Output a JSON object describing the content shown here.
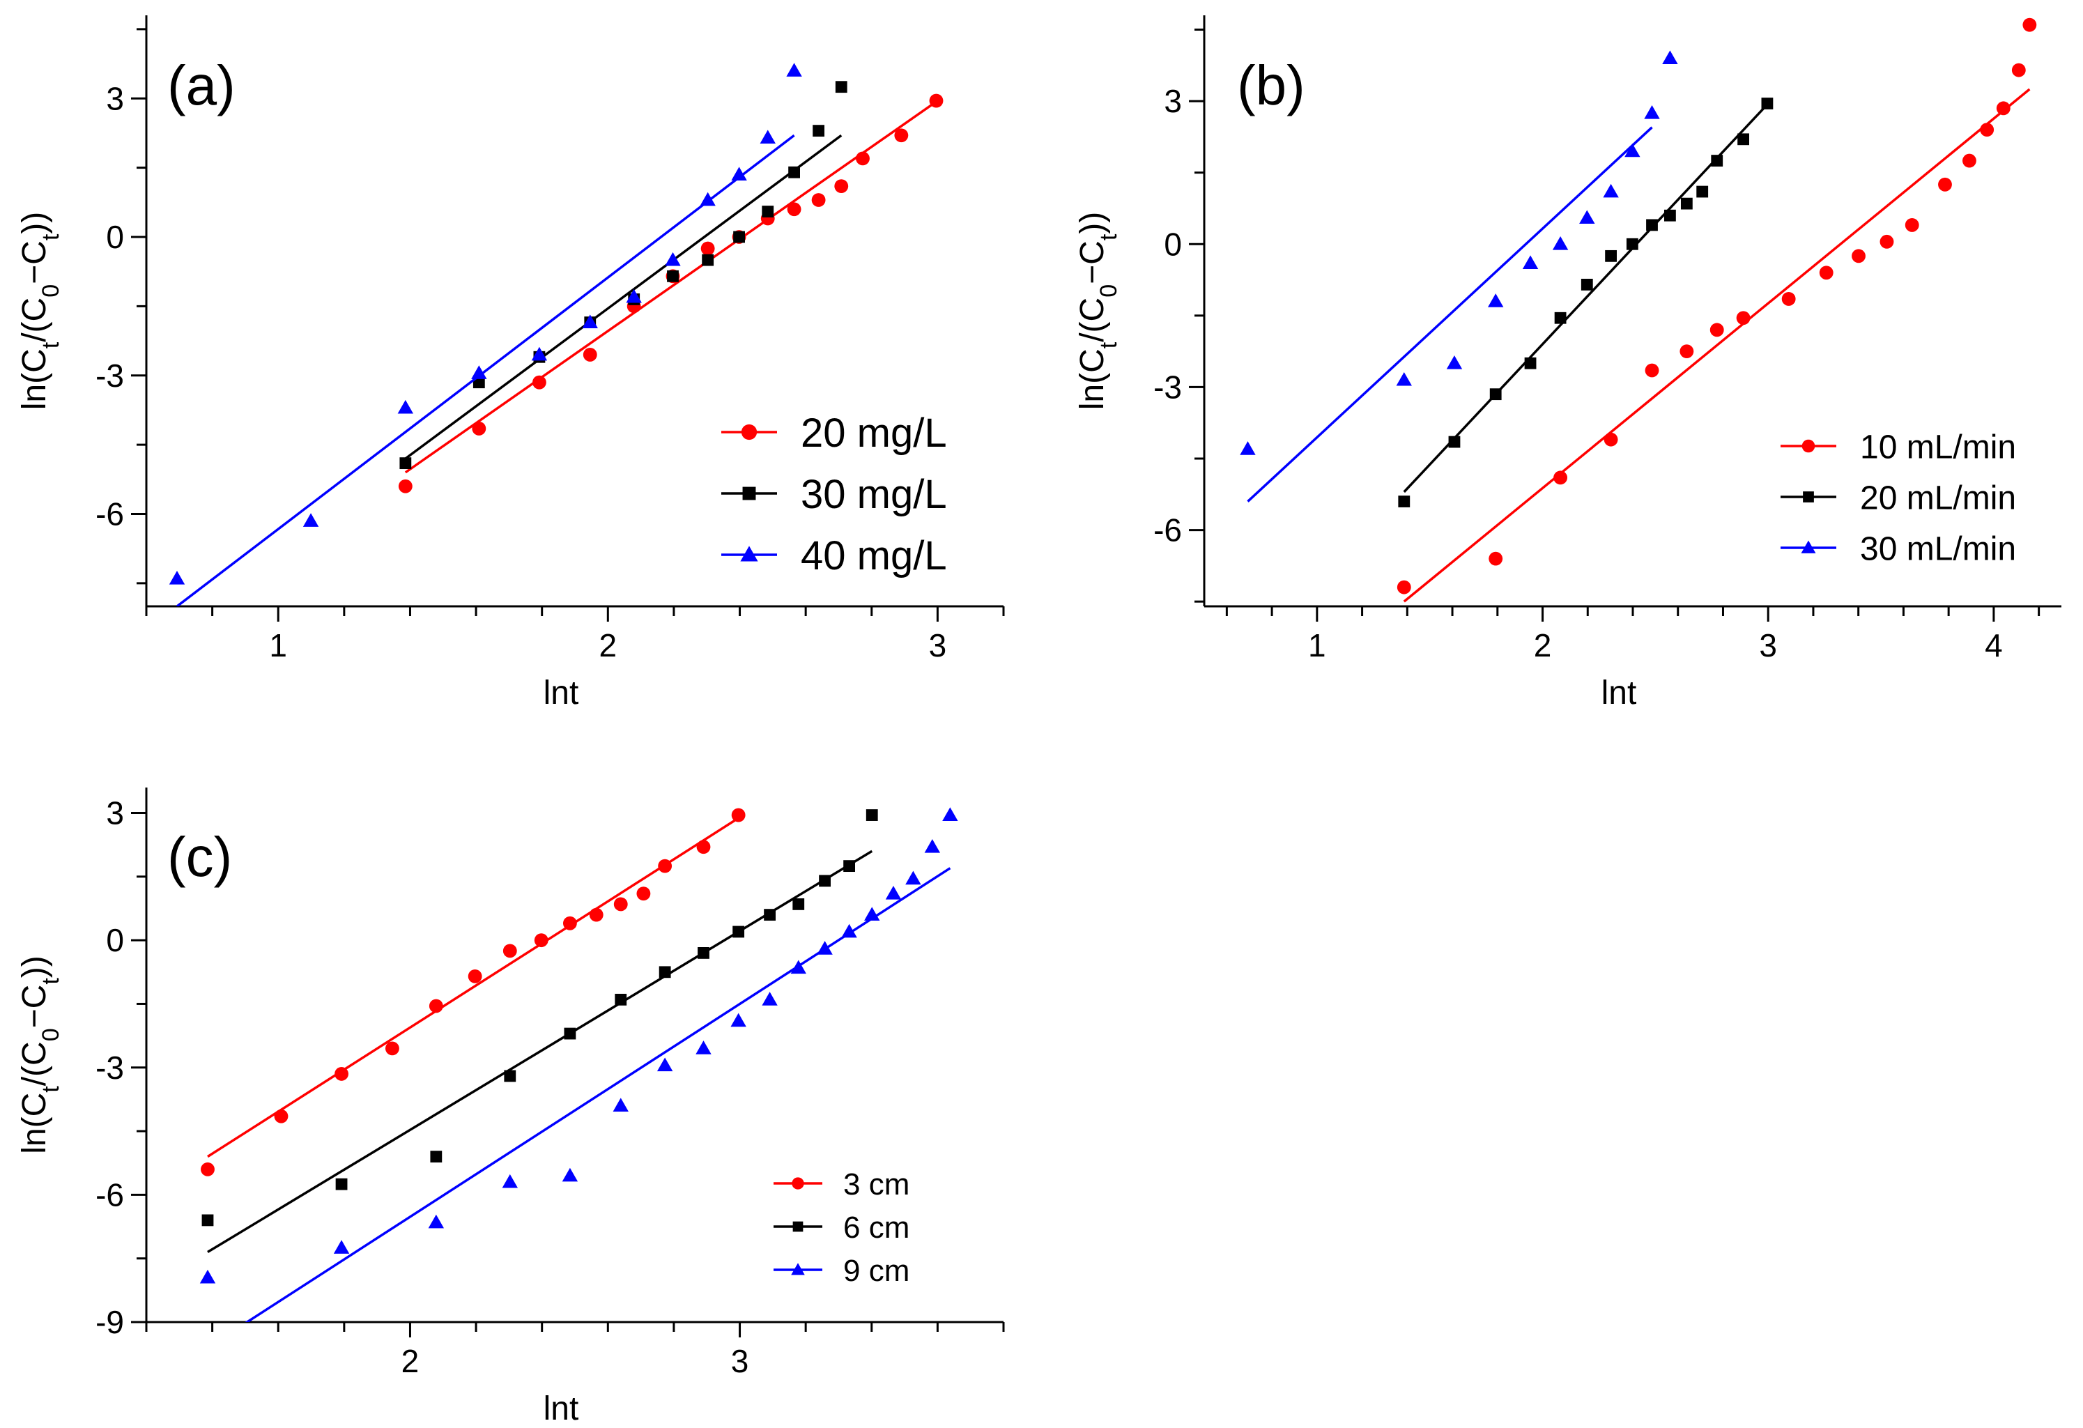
{
  "chart_data": [
    {
      "type": "scatter",
      "panel_label": "(a)",
      "xlabel": "lnt",
      "ylabel": "ln(Ct/(C0−Ct))",
      "ylabel_parts": {
        "pre": "ln(C",
        "sub1": "t",
        "mid": "/(C",
        "sub2": "0",
        "mid2": "−C",
        "sub3": "t",
        "post": "))"
      },
      "xlim": [
        0.6,
        3.2
      ],
      "ylim": [
        -8.0,
        4.8
      ],
      "xticks": [
        1,
        2,
        3
      ],
      "xtick_labels": [
        "1",
        "2",
        "3"
      ],
      "yticks": [
        -6,
        -3,
        0,
        3
      ],
      "ytick_labels": [
        "-6",
        "-3",
        "0",
        "3"
      ],
      "legend_position": "bottom-right",
      "series": [
        {
          "name": "20 mg/L",
          "color": "#ff0000",
          "marker": "circle",
          "x": [
            1.386,
            1.609,
            1.792,
            1.946,
            2.079,
            2.197,
            2.303,
            2.398,
            2.485,
            2.565,
            2.639,
            2.708,
            2.773,
            2.89,
            2.996
          ],
          "y": [
            -5.4,
            -4.15,
            -3.15,
            -2.55,
            -1.5,
            -0.85,
            -0.25,
            0.0,
            0.4,
            0.6,
            0.8,
            1.1,
            1.7,
            2.2,
            2.95
          ],
          "fit": [
            [
              1.386,
              -5.1
            ],
            [
              3.0,
              2.95
            ]
          ]
        },
        {
          "name": "30 mg/L",
          "color": "#000000",
          "marker": "square",
          "x": [
            1.386,
            1.609,
            1.792,
            1.946,
            2.079,
            2.197,
            2.303,
            2.398,
            2.485,
            2.565,
            2.639,
            2.708
          ],
          "y": [
            -4.9,
            -3.15,
            -2.6,
            -1.85,
            -1.35,
            -0.85,
            -0.5,
            0.0,
            0.55,
            1.4,
            2.3,
            3.25
          ],
          "fit": [
            [
              1.386,
              -4.8
            ],
            [
              2.708,
              2.2
            ]
          ]
        },
        {
          "name": "40 mg/L",
          "color": "#0000ff",
          "marker": "triangle",
          "x": [
            0.693,
            1.099,
            1.386,
            1.609,
            1.792,
            1.946,
            2.079,
            2.197,
            2.303,
            2.398,
            2.485,
            2.565
          ],
          "y": [
            -7.4,
            -6.15,
            -3.7,
            -2.95,
            -2.55,
            -1.85,
            -1.3,
            -0.5,
            0.8,
            1.35,
            2.15,
            3.6
          ],
          "fit": [
            [
              0.693,
              -8.0
            ],
            [
              2.565,
              2.2
            ]
          ]
        }
      ]
    },
    {
      "type": "scatter",
      "panel_label": "(b)",
      "xlabel": "lnt",
      "ylabel": "ln(Ct/(C0−Ct))",
      "ylabel_parts": {
        "pre": "ln(C",
        "sub1": "t",
        "mid": "/(C",
        "sub2": "0",
        "mid2": "−C",
        "sub3": "t",
        "post": "))"
      },
      "xlim": [
        0.5,
        4.3
      ],
      "ylim": [
        -7.6,
        4.8
      ],
      "xticks": [
        1,
        2,
        3,
        4
      ],
      "xtick_labels": [
        "1",
        "2",
        "3",
        "4"
      ],
      "yticks": [
        -6,
        -3,
        0,
        3
      ],
      "ytick_labels": [
        "-6",
        "-3",
        "0",
        "3"
      ],
      "legend_position": "bottom-right",
      "series": [
        {
          "name": "10 mL/min",
          "color": "#ff0000",
          "marker": "circle",
          "x": [
            1.386,
            1.792,
            2.079,
            2.303,
            2.485,
            2.639,
            2.773,
            2.89,
            3.091,
            3.258,
            3.401,
            3.526,
            3.638,
            3.784,
            3.892,
            3.97,
            4.043,
            4.111,
            4.159
          ],
          "y": [
            -7.2,
            -6.6,
            -4.9,
            -4.1,
            -2.65,
            -2.25,
            -1.8,
            -1.55,
            -1.15,
            -0.6,
            -0.25,
            0.05,
            0.4,
            1.25,
            1.75,
            2.4,
            2.85,
            3.65,
            4.6
          ],
          "fit": [
            [
              1.386,
              -7.5
            ],
            [
              4.159,
              3.25
            ]
          ]
        },
        {
          "name": "20 mL/min",
          "color": "#000000",
          "marker": "square",
          "x": [
            1.386,
            1.609,
            1.792,
            1.946,
            2.079,
            2.197,
            2.303,
            2.398,
            2.485,
            2.565,
            2.639,
            2.708,
            2.773,
            2.89,
            2.996
          ],
          "y": [
            -5.4,
            -4.15,
            -3.15,
            -2.5,
            -1.55,
            -0.85,
            -0.25,
            0.0,
            0.4,
            0.6,
            0.85,
            1.1,
            1.75,
            2.2,
            2.95
          ],
          "fit": [
            [
              1.386,
              -5.2
            ],
            [
              3.0,
              2.95
            ]
          ]
        },
        {
          "name": "30 mL/min",
          "color": "#0000ff",
          "marker": "triangle",
          "x": [
            0.693,
            1.386,
            1.609,
            1.792,
            1.946,
            2.079,
            2.197,
            2.303,
            2.398,
            2.485,
            2.565
          ],
          "y": [
            -4.3,
            -2.85,
            -2.5,
            -1.2,
            -0.4,
            0.0,
            0.55,
            1.1,
            1.95,
            2.75,
            3.9
          ],
          "fit": [
            [
              0.693,
              -5.4
            ],
            [
              2.485,
              2.45
            ]
          ]
        }
      ]
    },
    {
      "type": "scatter",
      "panel_label": "(c)",
      "xlabel": "lnt",
      "ylabel": "ln(Ct/(C0−Ct))",
      "ylabel_parts": {
        "pre": "ln(C",
        "sub1": "t",
        "mid": "/(C",
        "sub2": "0",
        "mid2": "−C",
        "sub3": "t",
        "post": "))"
      },
      "xlim": [
        1.2,
        3.8
      ],
      "ylim": [
        -9.0,
        3.6
      ],
      "xticks": [
        2,
        3
      ],
      "xtick_labels": [
        "2",
        "3"
      ],
      "yticks": [
        -9,
        -6,
        -3,
        0,
        3
      ],
      "ytick_labels": [
        "-9",
        "-6",
        "-3",
        "0",
        "3"
      ],
      "legend_position": "bottom-right",
      "series": [
        {
          "name": "3 cm",
          "color": "#ff0000",
          "marker": "circle",
          "x": [
            1.386,
            1.609,
            1.792,
            1.946,
            2.079,
            2.197,
            2.303,
            2.398,
            2.485,
            2.565,
            2.639,
            2.708,
            2.773,
            2.89,
            2.996
          ],
          "y": [
            -5.4,
            -4.15,
            -3.15,
            -2.55,
            -1.55,
            -0.85,
            -0.25,
            0.0,
            0.4,
            0.6,
            0.85,
            1.1,
            1.75,
            2.2,
            2.95
          ],
          "fit": [
            [
              1.386,
              -5.1
            ],
            [
              3.0,
              2.9
            ]
          ]
        },
        {
          "name": "6 cm",
          "color": "#000000",
          "marker": "square",
          "x": [
            1.386,
            1.792,
            2.079,
            2.303,
            2.485,
            2.639,
            2.773,
            2.89,
            2.996,
            3.091,
            3.178,
            3.258,
            3.332,
            3.401
          ],
          "y": [
            -6.6,
            -5.75,
            -5.1,
            -3.2,
            -2.2,
            -1.4,
            -0.75,
            -0.3,
            0.2,
            0.6,
            0.85,
            1.4,
            1.75,
            2.95
          ],
          "fit": [
            [
              1.386,
              -7.35
            ],
            [
              3.401,
              2.1
            ]
          ]
        },
        {
          "name": "9 cm",
          "color": "#0000ff",
          "marker": "triangle",
          "x": [
            1.386,
            1.792,
            2.079,
            2.303,
            2.485,
            2.639,
            2.773,
            2.89,
            2.996,
            3.091,
            3.178,
            3.258,
            3.332,
            3.401,
            3.466,
            3.526,
            3.584,
            3.638
          ],
          "y": [
            -7.95,
            -7.25,
            -6.65,
            -5.7,
            -5.55,
            -3.9,
            -2.95,
            -2.55,
            -1.9,
            -1.4,
            -0.65,
            -0.2,
            0.2,
            0.6,
            1.1,
            1.45,
            2.2,
            2.95
          ],
          "fit": [
            [
              1.386,
              -9.6
            ],
            [
              3.638,
              1.7
            ]
          ]
        }
      ]
    }
  ]
}
